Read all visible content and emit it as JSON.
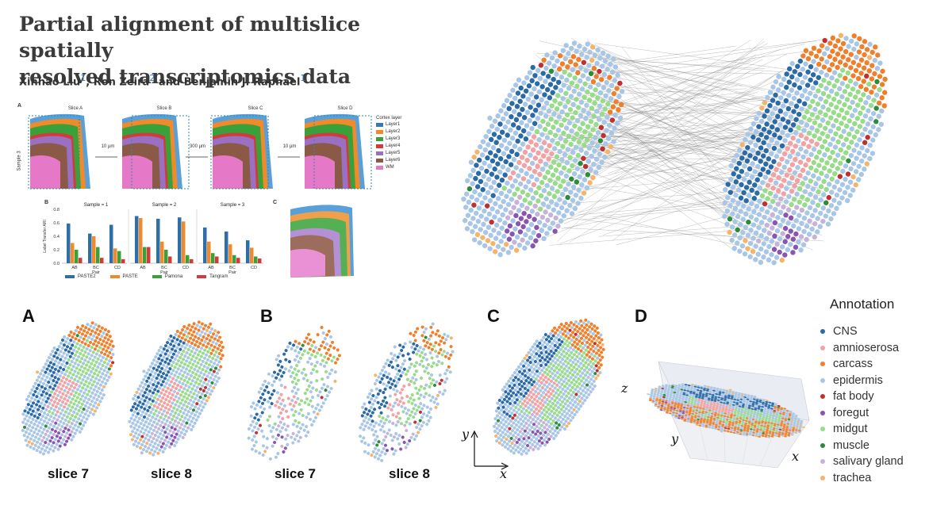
{
  "paper": {
    "title_line1": "Partial alignment of multislice spatially",
    "title_line2": "resolved transcriptomics data",
    "authors": [
      {
        "name": "Xinhao Liu",
        "aff": "1"
      },
      {
        "name": "Ron Zeira",
        "aff": "2"
      },
      {
        "name": "Benjamin J. Raphael",
        "aff": "1"
      }
    ],
    "author_sep_1": ",",
    "author_sep_2": "and"
  },
  "inset_figure": {
    "panel_a": "A",
    "panel_b": "B",
    "panel_c": "C",
    "slices": [
      "Slice A",
      "Slice B",
      "Slice C",
      "Slice D"
    ],
    "sample_label": "Sample 3",
    "gaps": [
      "10 µm",
      "300 µm",
      "10 µm"
    ],
    "cortex_legend_title": "Cortex layer",
    "cortex_layers": [
      {
        "name": "Layer1",
        "color": "#3a78b4"
      },
      {
        "name": "Layer2",
        "color": "#f08a2a"
      },
      {
        "name": "Layer3",
        "color": "#3aa13a"
      },
      {
        "name": "Layer4",
        "color": "#d33a3a"
      },
      {
        "name": "Layer5",
        "color": "#9a70c2"
      },
      {
        "name": "Layer6",
        "color": "#8b5a47"
      },
      {
        "name": "WM",
        "color": "#e678c8"
      }
    ],
    "methods_legend": [
      {
        "name": "PASTE2",
        "color": "#2f6fa8"
      },
      {
        "name": "PASTE",
        "color": "#f08a2a"
      },
      {
        "name": "Pamona",
        "color": "#3aa13a"
      },
      {
        "name": "Tangram",
        "color": "#d33a3a"
      }
    ]
  },
  "chart_data": {
    "type": "bar",
    "facets": [
      "Sample = 1",
      "Sample = 2",
      "Sample = 3"
    ],
    "categories": [
      "AB",
      "BC",
      "CD"
    ],
    "xlabel": "Pair",
    "ylabel": "Label Transfer ARI",
    "ylim": [
      0,
      0.8
    ],
    "yticks": [
      "0.0",
      "0.2",
      "0.4",
      "0.6",
      "0.8"
    ],
    "series": [
      {
        "name": "PASTE2",
        "color": "#2f6fa8",
        "values": [
          [
            0.59,
            0.44,
            0.57
          ],
          [
            0.7,
            0.66,
            0.68
          ],
          [
            0.53,
            0.47,
            0.34
          ]
        ]
      },
      {
        "name": "PASTE",
        "color": "#f08a2a",
        "values": [
          [
            0.3,
            0.4,
            0.22
          ],
          [
            0.67,
            0.32,
            0.62
          ],
          [
            0.32,
            0.28,
            0.23
          ]
        ]
      },
      {
        "name": "Pamona",
        "color": "#3aa13a",
        "values": [
          [
            0.2,
            0.24,
            0.18
          ],
          [
            0.24,
            0.2,
            0.12
          ],
          [
            0.15,
            0.12,
            0.1
          ]
        ]
      },
      {
        "name": "Tangram",
        "color": "#d33a3a",
        "values": [
          [
            0.08,
            0.08,
            0.06
          ],
          [
            0.24,
            0.1,
            0.06
          ],
          [
            0.1,
            0.08,
            0.07
          ]
        ]
      }
    ]
  },
  "bottom_figure": {
    "panels": [
      "A",
      "B",
      "C",
      "D"
    ],
    "captions": [
      "slice 7",
      "slice 8",
      "slice 7",
      "slice 8"
    ],
    "axes_c": {
      "x": "x",
      "y": "y"
    },
    "axes_d": {
      "x": "x",
      "y": "y",
      "z": "z"
    },
    "legend_title": "Annotation",
    "annotations": [
      {
        "name": "CNS",
        "color": "#2a6aa6"
      },
      {
        "name": "amnioserosa",
        "color": "#f2a2a2"
      },
      {
        "name": "carcass",
        "color": "#f07f2c"
      },
      {
        "name": "epidermis",
        "color": "#a8c6e6"
      },
      {
        "name": "fat body",
        "color": "#c03030"
      },
      {
        "name": "foregut",
        "color": "#8a55b0"
      },
      {
        "name": "midgut",
        "color": "#98db8a"
      },
      {
        "name": "muscle",
        "color": "#2e8b3a"
      },
      {
        "name": "salivary gland",
        "color": "#c7b2d8"
      },
      {
        "name": "trachea",
        "color": "#f5b46a"
      }
    ]
  }
}
